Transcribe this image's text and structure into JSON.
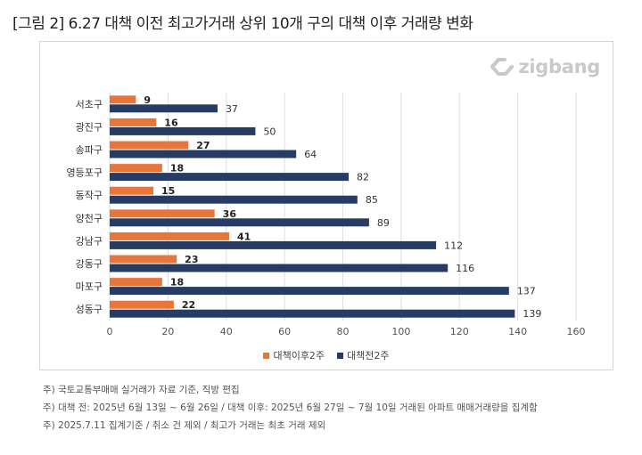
{
  "title": "[그림 2] 6.27 대책 이전 최고가거래 상위 10개 구의 대책 이후 거래량 변화",
  "brand": {
    "name": "zigbang",
    "icon": "zigbang-logo-icon",
    "color": "#c9c9c9"
  },
  "colors": {
    "after": "#e8763a",
    "before": "#263c64"
  },
  "chart_data": {
    "type": "bar",
    "orientation": "horizontal",
    "categories": [
      "서초구",
      "광진구",
      "송파구",
      "영등포구",
      "동작구",
      "양천구",
      "강남구",
      "강동구",
      "마포구",
      "성동구"
    ],
    "series": [
      {
        "name": "대책이후2주",
        "values": [
          9,
          16,
          27,
          18,
          15,
          36,
          41,
          23,
          18,
          22
        ]
      },
      {
        "name": "대책전2주",
        "values": [
          37,
          50,
          64,
          82,
          85,
          89,
          112,
          116,
          137,
          139
        ]
      }
    ],
    "xlim": [
      0,
      160
    ],
    "xticks": [
      "0",
      "20",
      "40",
      "60",
      "80",
      "100",
      "120",
      "140",
      "160"
    ],
    "grid": "vertical",
    "legend_position": "bottom"
  },
  "notes": [
    "주) 국토교통부매매 실거래가 자료 기준, 직방 편집",
    "주) 대책 전: 2025년 6월 13일 ~ 6월 26일 / 대책 이후: 2025년 6월 27일 ~ 7월 10일 거래된 아파트 매매거래량을 집계함",
    "주) 2025.7.11 집계기준 / 취소 건 제외 / 최고가 거래는 최초 거래 제외"
  ]
}
